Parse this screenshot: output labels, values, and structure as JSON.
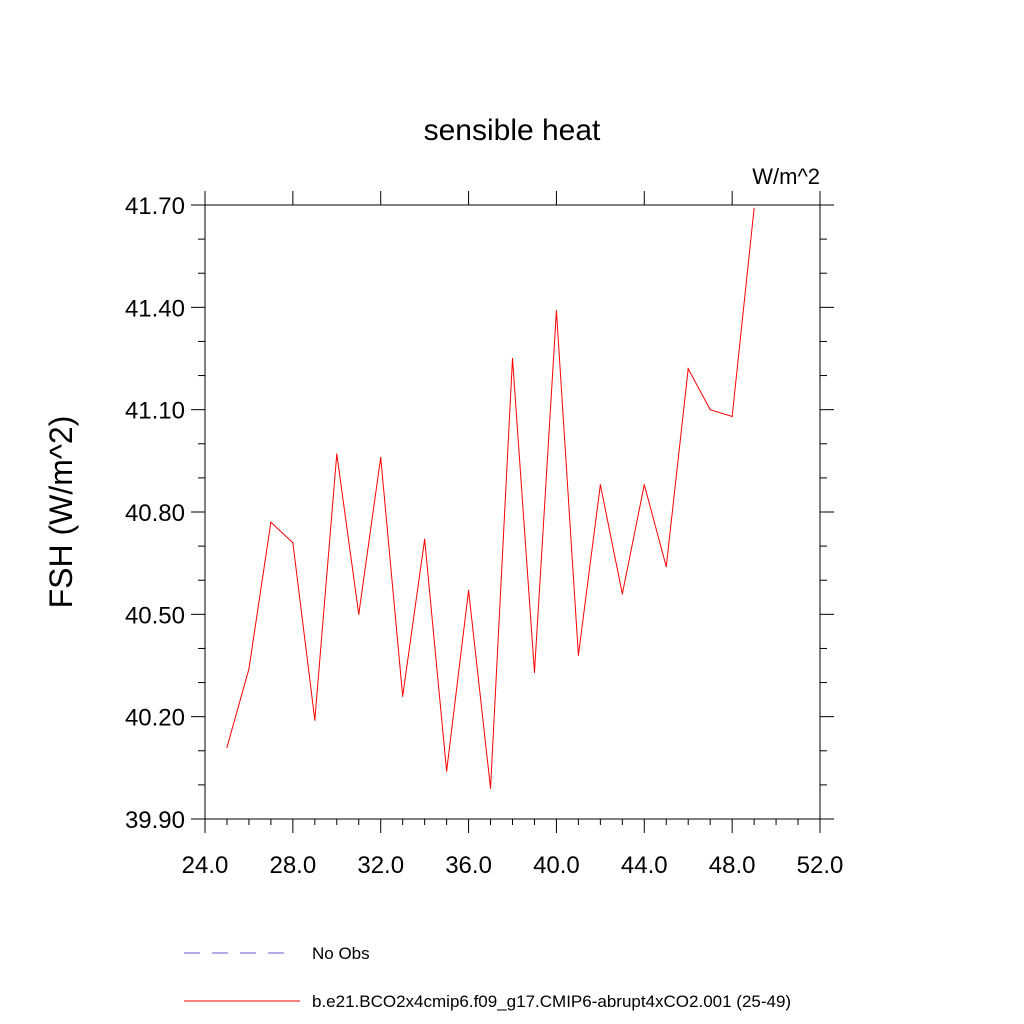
{
  "chart_data": {
    "type": "line",
    "title": "sensible heat",
    "units_label": "W/m^2",
    "ylabel": "FSH  (W/m^2)",
    "xlabel": "",
    "xlim": [
      24.0,
      52.0
    ],
    "ylim": [
      39.9,
      41.7
    ],
    "x_ticks": [
      24.0,
      28.0,
      32.0,
      36.0,
      40.0,
      44.0,
      48.0,
      52.0
    ],
    "x_tick_labels": [
      "24.0",
      "28.0",
      "32.0",
      "36.0",
      "40.0",
      "44.0",
      "48.0",
      "52.0"
    ],
    "y_ticks": [
      39.9,
      40.2,
      40.5,
      40.8,
      41.1,
      41.4,
      41.7
    ],
    "y_tick_labels": [
      "39.90",
      "40.20",
      "40.50",
      "40.80",
      "41.10",
      "41.40",
      "41.70"
    ],
    "grid": false,
    "legend_position": "bottom",
    "series": [
      {
        "name": "b.e21.BCO2x4cmip6.f09_g17.CMIP6-abrupt4xCO2.001 (25-49)",
        "color": "#ff0000",
        "dash": "solid",
        "x": [
          25,
          26,
          27,
          28,
          29,
          30,
          31,
          32,
          33,
          34,
          35,
          36,
          37,
          38,
          39,
          40,
          41,
          42,
          43,
          44,
          45,
          46,
          47,
          48,
          49
        ],
        "y": [
          40.11,
          40.34,
          40.77,
          40.71,
          40.19,
          40.97,
          40.5,
          40.96,
          40.26,
          40.72,
          40.04,
          40.57,
          39.99,
          41.25,
          40.33,
          41.39,
          40.38,
          40.88,
          40.56,
          40.88,
          40.64,
          41.22,
          41.1,
          41.08,
          41.69
        ]
      },
      {
        "name": "No Obs",
        "color": "#6a5acd",
        "dash": "dashed",
        "x": [],
        "y": []
      }
    ]
  }
}
